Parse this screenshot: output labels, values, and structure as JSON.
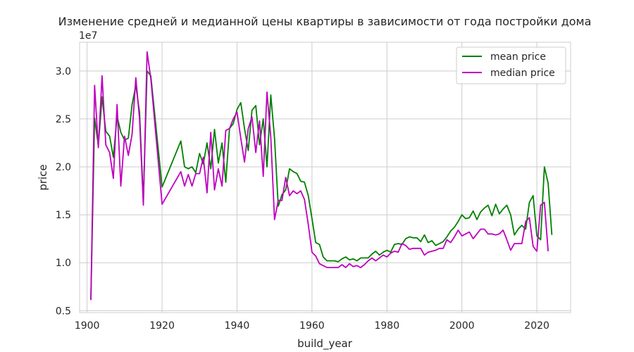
{
  "chart_data": {
    "type": "line",
    "title": "Изменение средней и медианной цены квартиры в зависимости от года постройки дома",
    "xlabel": "build_year",
    "ylabel": "price",
    "y_offset_label": "1e7",
    "xlim": [
      1898,
      2029
    ],
    "ylim": [
      4800000,
      33000000
    ],
    "x_ticks": [
      1900,
      1920,
      1940,
      1960,
      1980,
      2000,
      2020
    ],
    "y_ticks": [
      5000000,
      10000000,
      15000000,
      20000000,
      25000000,
      30000000
    ],
    "y_tick_labels": [
      "0.5",
      "1.0",
      "1.5",
      "2.0",
      "2.5",
      "3.0"
    ],
    "grid": true,
    "legend_position": "top-right",
    "series": [
      {
        "name": "mean price",
        "color": "#008000",
        "points": [
          [
            1901,
            6200000
          ],
          [
            1902,
            25100000
          ],
          [
            1903,
            22200000
          ],
          [
            1904,
            27300000
          ],
          [
            1905,
            23700000
          ],
          [
            1906,
            23200000
          ],
          [
            1907,
            21000000
          ],
          [
            1908,
            25300000
          ],
          [
            1909,
            23600000
          ],
          [
            1910,
            22800000
          ],
          [
            1911,
            23000000
          ],
          [
            1912,
            26500000
          ],
          [
            1913,
            28500000
          ],
          [
            1914,
            25700000
          ],
          [
            1915,
            16500000
          ],
          [
            1916,
            30000000
          ],
          [
            1917,
            29500000
          ],
          [
            1920,
            17900000
          ],
          [
            1925,
            22700000
          ],
          [
            1926,
            20000000
          ],
          [
            1927,
            19800000
          ],
          [
            1928,
            20000000
          ],
          [
            1929,
            19400000
          ],
          [
            1930,
            21400000
          ],
          [
            1931,
            20300000
          ],
          [
            1932,
            22500000
          ],
          [
            1933,
            19800000
          ],
          [
            1934,
            23900000
          ],
          [
            1935,
            20400000
          ],
          [
            1936,
            22500000
          ],
          [
            1937,
            18400000
          ],
          [
            1938,
            24000000
          ],
          [
            1939,
            24500000
          ],
          [
            1940,
            26000000
          ],
          [
            1941,
            26700000
          ],
          [
            1942,
            24000000
          ],
          [
            1943,
            21700000
          ],
          [
            1944,
            25900000
          ],
          [
            1945,
            26400000
          ],
          [
            1946,
            22300000
          ],
          [
            1947,
            25000000
          ],
          [
            1948,
            20000000
          ],
          [
            1949,
            27500000
          ],
          [
            1950,
            23000000
          ],
          [
            1951,
            15900000
          ],
          [
            1952,
            17100000
          ],
          [
            1953,
            17600000
          ],
          [
            1954,
            19800000
          ],
          [
            1955,
            19500000
          ],
          [
            1956,
            19300000
          ],
          [
            1957,
            18500000
          ],
          [
            1958,
            18400000
          ],
          [
            1959,
            17000000
          ],
          [
            1960,
            14600000
          ],
          [
            1961,
            12100000
          ],
          [
            1962,
            11900000
          ],
          [
            1963,
            10600000
          ],
          [
            1964,
            10200000
          ],
          [
            1965,
            10200000
          ],
          [
            1966,
            10200000
          ],
          [
            1967,
            10100000
          ],
          [
            1968,
            10400000
          ],
          [
            1969,
            10600000
          ],
          [
            1970,
            10300000
          ],
          [
            1971,
            10400000
          ],
          [
            1972,
            10200000
          ],
          [
            1973,
            10500000
          ],
          [
            1974,
            10500000
          ],
          [
            1975,
            10500000
          ],
          [
            1976,
            10900000
          ],
          [
            1977,
            11200000
          ],
          [
            1978,
            10800000
          ],
          [
            1979,
            11100000
          ],
          [
            1980,
            11300000
          ],
          [
            1981,
            11100000
          ],
          [
            1982,
            11900000
          ],
          [
            1983,
            12000000
          ],
          [
            1984,
            11900000
          ],
          [
            1985,
            12500000
          ],
          [
            1986,
            12700000
          ],
          [
            1987,
            12600000
          ],
          [
            1988,
            12600000
          ],
          [
            1989,
            12200000
          ],
          [
            1990,
            12900000
          ],
          [
            1991,
            12100000
          ],
          [
            1992,
            12300000
          ],
          [
            1993,
            11800000
          ],
          [
            1994,
            12000000
          ],
          [
            1995,
            12200000
          ],
          [
            1996,
            12700000
          ],
          [
            1997,
            13300000
          ],
          [
            1998,
            13700000
          ],
          [
            1999,
            14300000
          ],
          [
            2000,
            15000000
          ],
          [
            2001,
            14600000
          ],
          [
            2002,
            14700000
          ],
          [
            2003,
            15400000
          ],
          [
            2004,
            14500000
          ],
          [
            2005,
            15300000
          ],
          [
            2006,
            15700000
          ],
          [
            2007,
            16000000
          ],
          [
            2008,
            14900000
          ],
          [
            2009,
            16100000
          ],
          [
            2010,
            15100000
          ],
          [
            2011,
            15600000
          ],
          [
            2012,
            16000000
          ],
          [
            2013,
            15000000
          ],
          [
            2014,
            12900000
          ],
          [
            2015,
            13500000
          ],
          [
            2016,
            13900000
          ],
          [
            2017,
            13500000
          ],
          [
            2018,
            16300000
          ],
          [
            2019,
            17000000
          ],
          [
            2020,
            12800000
          ],
          [
            2021,
            12400000
          ],
          [
            2022,
            20000000
          ],
          [
            2023,
            18300000
          ],
          [
            2024,
            12900000
          ]
        ]
      },
      {
        "name": "median price",
        "color": "#bf00bf",
        "points": [
          [
            1901,
            6100000
          ],
          [
            1902,
            28500000
          ],
          [
            1903,
            22000000
          ],
          [
            1904,
            29500000
          ],
          [
            1905,
            22300000
          ],
          [
            1906,
            21500000
          ],
          [
            1907,
            18800000
          ],
          [
            1908,
            26500000
          ],
          [
            1909,
            18000000
          ],
          [
            1910,
            23200000
          ],
          [
            1911,
            21200000
          ],
          [
            1912,
            23400000
          ],
          [
            1913,
            29300000
          ],
          [
            1914,
            25000000
          ],
          [
            1915,
            16000000
          ],
          [
            1916,
            32000000
          ],
          [
            1917,
            29200000
          ],
          [
            1920,
            16100000
          ],
          [
            1925,
            19500000
          ],
          [
            1926,
            18000000
          ],
          [
            1927,
            19200000
          ],
          [
            1928,
            18000000
          ],
          [
            1929,
            19300000
          ],
          [
            1930,
            19300000
          ],
          [
            1931,
            21000000
          ],
          [
            1932,
            17300000
          ],
          [
            1933,
            23600000
          ],
          [
            1934,
            17600000
          ],
          [
            1935,
            19800000
          ],
          [
            1936,
            18000000
          ],
          [
            1937,
            23800000
          ],
          [
            1938,
            24000000
          ],
          [
            1939,
            25000000
          ],
          [
            1940,
            25700000
          ],
          [
            1941,
            23000000
          ],
          [
            1942,
            20500000
          ],
          [
            1943,
            24000000
          ],
          [
            1944,
            25200000
          ],
          [
            1945,
            21500000
          ],
          [
            1946,
            24800000
          ],
          [
            1947,
            19000000
          ],
          [
            1948,
            27800000
          ],
          [
            1949,
            23100000
          ],
          [
            1950,
            14500000
          ],
          [
            1951,
            16500000
          ],
          [
            1952,
            16500000
          ],
          [
            1953,
            18900000
          ],
          [
            1954,
            17000000
          ],
          [
            1955,
            17500000
          ],
          [
            1956,
            17200000
          ],
          [
            1957,
            17500000
          ],
          [
            1958,
            16600000
          ],
          [
            1959,
            14000000
          ],
          [
            1960,
            11100000
          ],
          [
            1961,
            10700000
          ],
          [
            1962,
            9900000
          ],
          [
            1963,
            9700000
          ],
          [
            1964,
            9500000
          ],
          [
            1965,
            9500000
          ],
          [
            1966,
            9500000
          ],
          [
            1967,
            9500000
          ],
          [
            1968,
            9800000
          ],
          [
            1969,
            9500000
          ],
          [
            1970,
            9900000
          ],
          [
            1971,
            9600000
          ],
          [
            1972,
            9700000
          ],
          [
            1973,
            9500000
          ],
          [
            1974,
            9800000
          ],
          [
            1975,
            10200000
          ],
          [
            1976,
            10500000
          ],
          [
            1977,
            10200000
          ],
          [
            1978,
            10500000
          ],
          [
            1979,
            10800000
          ],
          [
            1980,
            10600000
          ],
          [
            1981,
            11000000
          ],
          [
            1982,
            11200000
          ],
          [
            1983,
            11100000
          ],
          [
            1984,
            12000000
          ],
          [
            1985,
            11800000
          ],
          [
            1986,
            11400000
          ],
          [
            1987,
            11500000
          ],
          [
            1988,
            11500000
          ],
          [
            1989,
            11500000
          ],
          [
            1990,
            10800000
          ],
          [
            1991,
            11100000
          ],
          [
            1992,
            11200000
          ],
          [
            1993,
            11300000
          ],
          [
            1994,
            11500000
          ],
          [
            1995,
            11500000
          ],
          [
            1996,
            12400000
          ],
          [
            1997,
            12100000
          ],
          [
            1998,
            12700000
          ],
          [
            1999,
            13400000
          ],
          [
            2000,
            12800000
          ],
          [
            2001,
            13000000
          ],
          [
            2002,
            13200000
          ],
          [
            2003,
            12500000
          ],
          [
            2004,
            13000000
          ],
          [
            2005,
            13500000
          ],
          [
            2006,
            13500000
          ],
          [
            2007,
            13000000
          ],
          [
            2008,
            13000000
          ],
          [
            2009,
            12900000
          ],
          [
            2010,
            13000000
          ],
          [
            2011,
            13400000
          ],
          [
            2012,
            12400000
          ],
          [
            2013,
            11300000
          ],
          [
            2014,
            12000000
          ],
          [
            2015,
            12000000
          ],
          [
            2016,
            12000000
          ],
          [
            2017,
            14300000
          ],
          [
            2018,
            14700000
          ],
          [
            2019,
            11700000
          ],
          [
            2020,
            11200000
          ],
          [
            2021,
            16000000
          ],
          [
            2022,
            16300000
          ],
          [
            2023,
            11200000
          ]
        ]
      }
    ]
  }
}
